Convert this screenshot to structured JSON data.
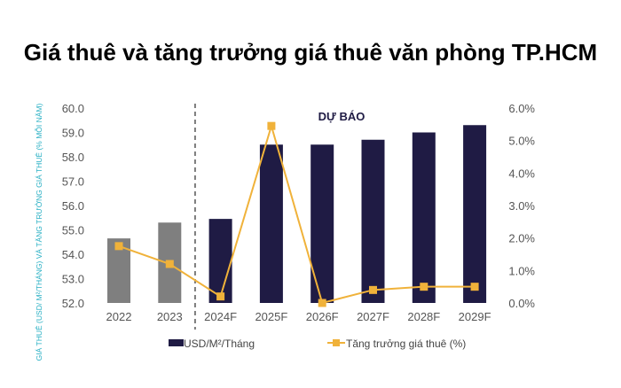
{
  "chart_data": {
    "type": "bar",
    "title": "Giá thuê và tăng trưởng giá thuê văn phòng TP.HCM",
    "ylabel": "GIÁ THUÊ (USD/ M²/THÁNG) VÀ TĂNG TRƯỞNG GIÁ THUÊ (% MỖI NĂM)",
    "categories": [
      "2022",
      "2023",
      "2024F",
      "2025F",
      "2026F",
      "2027F",
      "2028F",
      "2029F"
    ],
    "ylim": [
      52.0,
      60.0
    ],
    "y_ticks": [
      "52.0",
      "53.0",
      "54.0",
      "55.0",
      "56.0",
      "57.0",
      "58.0",
      "59.0",
      "60.0"
    ],
    "y2lim": [
      0,
      6
    ],
    "y2_ticks": [
      "0.0%",
      "1.0%",
      "2.0%",
      "3.0%",
      "4.0%",
      "5.0%",
      "6.0%"
    ],
    "annotation": "DỰ BÁO",
    "forecast_divider_after": "2023",
    "grid": false,
    "legend_position": "bottom",
    "series": [
      {
        "name": "USD/M²/Tháng",
        "type": "bar",
        "axis": "left",
        "values": [
          54.65,
          55.3,
          55.45,
          58.5,
          58.5,
          58.7,
          59.0,
          59.3
        ],
        "colors": {
          "actual": "#7f7f7f",
          "forecast": "#1f1b44"
        }
      },
      {
        "name": "Tăng trưởng giá thuê (%)",
        "type": "line",
        "axis": "right",
        "values": [
          1.75,
          1.2,
          0.2,
          5.45,
          0.0,
          0.4,
          0.5,
          0.5
        ],
        "color": "#f0b23a"
      }
    ]
  }
}
